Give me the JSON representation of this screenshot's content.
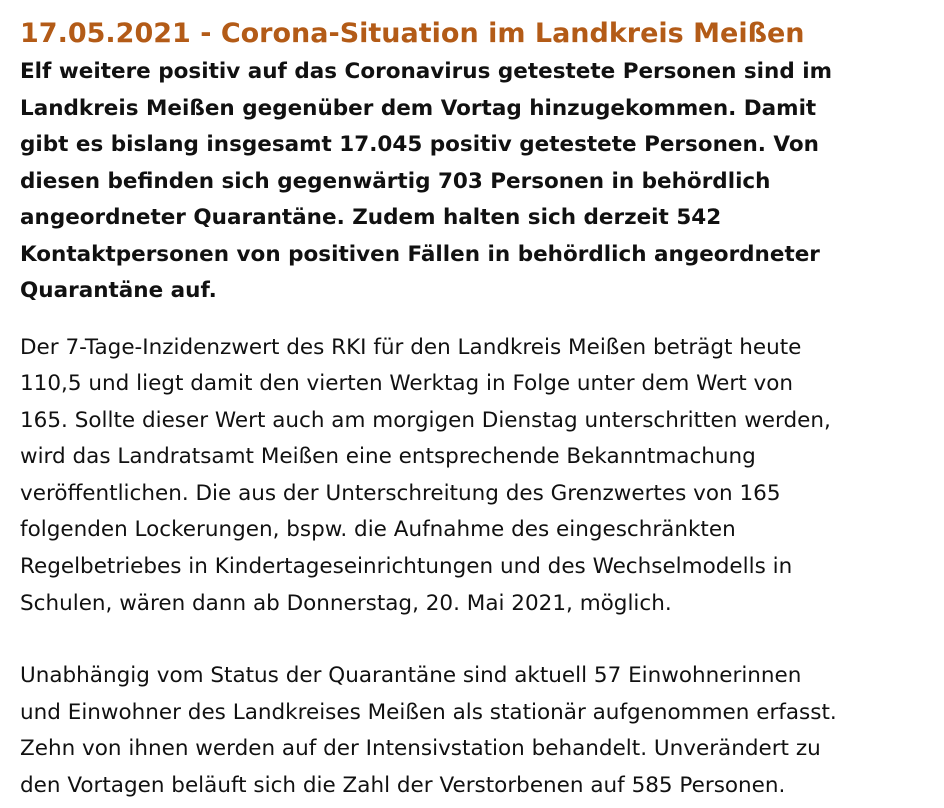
{
  "article": {
    "title": "17.05.2021 - Corona-Situation im Landkreis Meißen",
    "lead_lines": [
      "Elf weitere positiv auf das Coronavirus getestete Personen sind im",
      "Landkreis Meißen gegenüber dem Vortag hinzugekommen. Damit",
      "gibt es bislang insgesamt 17.045 positiv getestete Personen. Von",
      "diesen befinden sich gegenwärtig 703 Personen in behördlich",
      "angeordneter Quarantäne. Zudem halten sich derzeit 542",
      "Kontaktpersonen von positiven Fällen in behördlich angeordneter",
      "Quarantäne auf."
    ],
    "paragraph1_lines": [
      "Der 7-Tage-Inzidenzwert des RKI für den Landkreis Meißen beträgt heute",
      "110,5 und liegt damit den vierten Werktag in Folge unter dem Wert von",
      "165. Sollte dieser Wert auch am morgigen Dienstag unterschritten werden,",
      "wird das Landratsamt Meißen eine entsprechende Bekanntmachung",
      "veröffentlichen. Die aus der Unterschreitung des Grenzwertes von 165",
      "folgenden Lockerungen, bspw. die Aufnahme des eingeschränkten",
      "Regelbetriebes in Kindertageseinrichtungen und des Wechselmodells in",
      "Schulen, wären dann ab Donnerstag, 20. Mai 2021, möglich."
    ],
    "paragraph2_lines": [
      "Unabhängig vom Status der Quarantäne sind aktuell 57 Einwohnerinnen",
      "und Einwohner des Landkreises Meißen als stationär aufgenommen erfasst.",
      "Zehn von ihnen werden auf der Intensivstation behandelt. Unverändert zu",
      "den Vortagen beläuft sich die Zahl der Verstorbenen auf 585 Personen."
    ]
  }
}
